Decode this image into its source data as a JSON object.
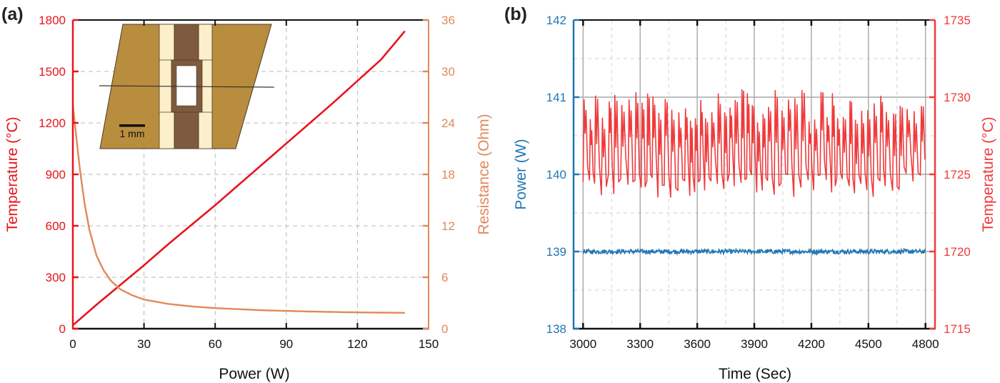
{
  "colors": {
    "temperature_red": "#e8141c",
    "resistance_orange": "#e0895a",
    "power_blue": "#1f77b4",
    "temp_b_red": "#f03a3c",
    "grid_gray": "#b8b8b8",
    "insert_tan": "#b98d3e",
    "insert_cream": "#fdefc9",
    "insert_brown": "#7e5a3e"
  },
  "chart_data": [
    {
      "panel_label": "(a)",
      "type": "line",
      "title": "",
      "xlabel": "Power (W)",
      "ylabel_left": "Temperature (°C)",
      "ylabel_right": "Resistance (Ohm)",
      "xlim": [
        0,
        150
      ],
      "ylim_left": [
        0,
        1800
      ],
      "ylim_right": [
        0,
        36
      ],
      "x_ticks": [
        "0",
        "30",
        "60",
        "90",
        "120",
        "150"
      ],
      "y_ticks_left": [
        "0",
        "300",
        "600",
        "900",
        "1200",
        "1500",
        "1800"
      ],
      "y_ticks_right": [
        "0",
        "6",
        "12",
        "18",
        "24",
        "30",
        "36"
      ],
      "grid": true,
      "series": [
        {
          "name": "Temperature",
          "axis": "left",
          "x": [
            0,
            10,
            20,
            30,
            40,
            50,
            60,
            70,
            80,
            90,
            100,
            110,
            120,
            130,
            140
          ],
          "y": [
            20,
            140,
            255,
            370,
            490,
            605,
            720,
            840,
            960,
            1080,
            1200,
            1320,
            1445,
            1570,
            1735
          ]
        },
        {
          "name": "Resistance",
          "axis": "right",
          "x": [
            0,
            1,
            2,
            3,
            5,
            7,
            10,
            13,
            16,
            20,
            25,
            30,
            40,
            50,
            60,
            80,
            100,
            120,
            140
          ],
          "y": [
            26,
            23.5,
            21,
            18.5,
            14.5,
            11.5,
            8.5,
            6.8,
            5.6,
            4.6,
            3.9,
            3.4,
            2.9,
            2.6,
            2.4,
            2.15,
            2.0,
            1.9,
            1.85
          ]
        }
      ],
      "inset": {
        "scale_bar_label": "1 mm"
      }
    },
    {
      "panel_label": "(b)",
      "type": "line",
      "title": "",
      "xlabel": "Time (Sec)",
      "ylabel_left": "Power (W)",
      "ylabel_right": "Temperature (°C)",
      "xlim": [
        2950,
        4850
      ],
      "ylim_left": [
        138,
        142
      ],
      "ylim_right": [
        1715,
        1735
      ],
      "x_ticks": [
        "3000",
        "3300",
        "3600",
        "3900",
        "4200",
        "4500",
        "4800"
      ],
      "y_ticks_left": [
        "138",
        "139",
        "140",
        "141",
        "142"
      ],
      "y_ticks_right": [
        "1715",
        "1720",
        "1725",
        "1730",
        "1735"
      ],
      "grid": true,
      "series": [
        {
          "name": "Power",
          "axis": "left",
          "mean": 139.0,
          "noise_amplitude": 0.03,
          "x_range": [
            3000,
            4800
          ]
        },
        {
          "name": "Temperature",
          "axis": "right",
          "mean": 1726.5,
          "oscillation_min": 1723.5,
          "oscillation_max": 1730.5,
          "period_sec": 30,
          "x_range": [
            3000,
            4800
          ]
        }
      ]
    }
  ]
}
